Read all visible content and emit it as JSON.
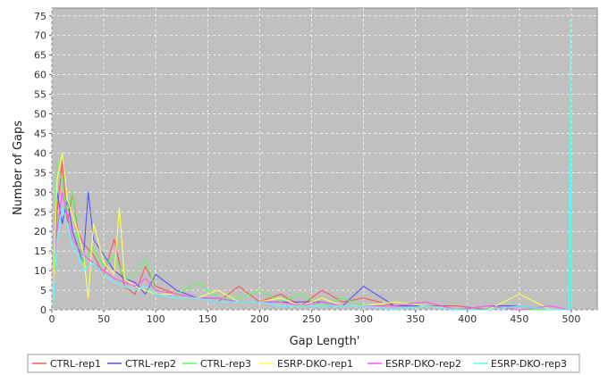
{
  "chart_data": {
    "type": "line",
    "xlabel": "Gap Length'",
    "ylabel": "Number of Gaps",
    "xlim": [
      0,
      525
    ],
    "ylim": [
      0,
      77
    ],
    "xticks": [
      0,
      50,
      100,
      150,
      200,
      250,
      300,
      350,
      400,
      450,
      500
    ],
    "yticks": [
      0,
      5,
      10,
      15,
      20,
      25,
      30,
      35,
      40,
      45,
      50,
      55,
      60,
      65,
      70,
      75
    ],
    "grid": true,
    "legend_position": "bottom",
    "plot_background": "#c0c0c0",
    "series": [
      {
        "name": "CTRL-rep1",
        "color": "#ff5555",
        "x": [
          1,
          5,
          10,
          15,
          20,
          25,
          30,
          40,
          50,
          60,
          70,
          80,
          90,
          100,
          120,
          140,
          160,
          180,
          200,
          220,
          240,
          260,
          280,
          300,
          330,
          360,
          390,
          420,
          450,
          480,
          498,
          499,
          500
        ],
        "y": [
          0,
          25,
          38,
          22,
          30,
          20,
          17,
          14,
          9,
          18,
          6,
          4,
          11,
          6,
          4,
          3,
          2,
          6,
          2,
          4,
          1,
          5,
          2,
          3,
          1,
          1,
          1,
          0,
          1,
          0,
          0,
          73,
          0
        ]
      },
      {
        "name": "CTRL-rep2",
        "color": "#5555ff",
        "x": [
          1,
          5,
          10,
          15,
          20,
          25,
          30,
          35,
          40,
          50,
          60,
          70,
          80,
          90,
          100,
          120,
          140,
          160,
          180,
          200,
          220,
          240,
          260,
          280,
          300,
          330,
          360,
          390,
          420,
          450,
          480,
          498,
          499,
          500
        ],
        "y": [
          0,
          30,
          22,
          28,
          20,
          16,
          12,
          30,
          18,
          14,
          10,
          8,
          7,
          4,
          9,
          5,
          3,
          3,
          2,
          2,
          2,
          2,
          2,
          1,
          6,
          1,
          1,
          0,
          1,
          1,
          0,
          0,
          0,
          0
        ]
      },
      {
        "name": "CTRL-rep3",
        "color": "#55ff55",
        "x": [
          1,
          5,
          10,
          15,
          20,
          25,
          30,
          40,
          50,
          60,
          70,
          80,
          90,
          100,
          120,
          140,
          160,
          180,
          200,
          220,
          240,
          260,
          280,
          300,
          330,
          360,
          390,
          420,
          450,
          480,
          498,
          499,
          500
        ],
        "y": [
          0,
          38,
          32,
          25,
          30,
          18,
          12,
          16,
          11,
          14,
          8,
          9,
          13,
          5,
          4,
          7,
          3,
          3,
          5,
          2,
          4,
          1,
          3,
          1,
          2,
          1,
          0,
          1,
          0,
          0,
          0,
          73,
          0
        ]
      },
      {
        "name": "ESRP-DKO-rep1",
        "color": "#ffff55",
        "x": [
          1,
          5,
          10,
          15,
          20,
          25,
          30,
          35,
          40,
          50,
          60,
          65,
          70,
          80,
          90,
          100,
          120,
          140,
          160,
          180,
          200,
          220,
          240,
          260,
          280,
          300,
          330,
          360,
          390,
          420,
          450,
          480,
          498,
          499,
          500
        ],
        "y": [
          0,
          33,
          40,
          28,
          24,
          20,
          15,
          3,
          22,
          12,
          9,
          26,
          8,
          6,
          5,
          4,
          4,
          3,
          5,
          2,
          2,
          3,
          1,
          3,
          1,
          1,
          2,
          1,
          0,
          0,
          4,
          0,
          0,
          0,
          0
        ]
      },
      {
        "name": "ESRP-DKO-rep2",
        "color": "#ff55ff",
        "x": [
          1,
          5,
          10,
          15,
          20,
          25,
          30,
          40,
          50,
          60,
          70,
          80,
          90,
          100,
          120,
          140,
          160,
          180,
          200,
          220,
          240,
          260,
          280,
          300,
          330,
          360,
          390,
          420,
          450,
          480,
          498,
          499,
          500
        ],
        "y": [
          0,
          20,
          30,
          24,
          18,
          16,
          14,
          12,
          10,
          8,
          7,
          6,
          8,
          5,
          4,
          3,
          3,
          2,
          2,
          2,
          1,
          2,
          1,
          1,
          1,
          2,
          0,
          1,
          0,
          1,
          0,
          0,
          0
        ]
      },
      {
        "name": "ESRP-DKO-rep3",
        "color": "#55ffff",
        "x": [
          1,
          5,
          10,
          15,
          20,
          25,
          30,
          40,
          50,
          60,
          70,
          80,
          90,
          100,
          120,
          140,
          160,
          180,
          200,
          220,
          240,
          260,
          280,
          300,
          330,
          360,
          390,
          420,
          450,
          480,
          498,
          499,
          500
        ],
        "y": [
          0,
          18,
          26,
          22,
          16,
          14,
          10,
          12,
          9,
          7,
          6,
          5,
          6,
          4,
          3,
          3,
          2,
          2,
          2,
          1,
          1,
          1,
          1,
          1,
          0,
          1,
          0,
          0,
          1,
          0,
          0,
          74,
          0
        ]
      }
    ]
  }
}
